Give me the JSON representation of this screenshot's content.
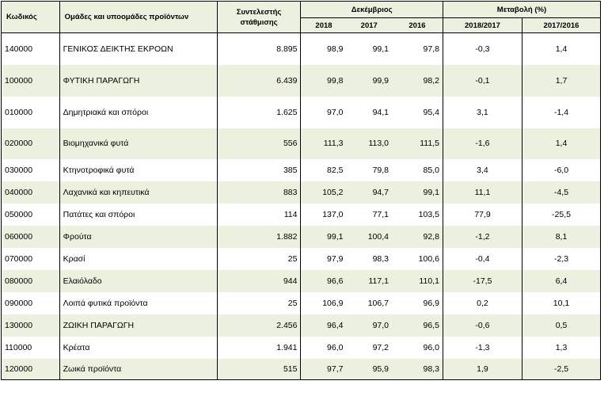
{
  "header": {
    "code": "Κωδικός",
    "groups": "Ομάδες και υποομάδες προϊόντων",
    "weight": "Συντελεστής στάθμισης",
    "december": "Δεκέμβριος",
    "change": "Μεταβολή (%)",
    "y2018": "2018",
    "y2017": "2017",
    "y2016": "2016",
    "c1": "2018/2017",
    "c2": "2017/2016"
  },
  "rows": [
    {
      "code": "140000",
      "name": "ΓΕΝΙΚΟΣ ΔΕΙΚΤΗΣ ΕΚΡΟΩΝ",
      "weight": "8.895",
      "v2018": "98,9",
      "v2017": "99,1",
      "v2016": "97,8",
      "c1": "-0,3",
      "c2": "1,4"
    },
    {
      "code": "100000",
      "name": "ΦΥΤΙΚΗ ΠΑΡΑΓΩΓΗ",
      "weight": "6.439",
      "v2018": "99,8",
      "v2017": "99,9",
      "v2016": "98,2",
      "c1": "-0,1",
      "c2": "1,7"
    },
    {
      "code": "010000",
      "name": "Δημητριακά και σπόροι",
      "weight": "1.625",
      "v2018": "97,0",
      "v2017": "94,1",
      "v2016": "95,4",
      "c1": "3,1",
      "c2": "-1,4"
    },
    {
      "code": "020000",
      "name": "Βιομηχανικά φυτά",
      "weight": "556",
      "v2018": "111,3",
      "v2017": "113,0",
      "v2016": "111,5",
      "c1": "-1,6",
      "c2": "1,4"
    },
    {
      "code": "030000",
      "name": "Κτηνοτροφικά φυτά",
      "weight": "385",
      "v2018": "82,5",
      "v2017": "79,8",
      "v2016": "85,0",
      "c1": "3,4",
      "c2": "-6,0"
    },
    {
      "code": "040000",
      "name": "Λαχανικά και κηπευτικά",
      "weight": "883",
      "v2018": "105,2",
      "v2017": "94,7",
      "v2016": "99,1",
      "c1": "11,1",
      "c2": "-4,5"
    },
    {
      "code": "050000",
      "name": "Πατάτες και σπόροι",
      "weight": "114",
      "v2018": "137,0",
      "v2017": "77,1",
      "v2016": "103,5",
      "c1": "77,9",
      "c2": "-25,5"
    },
    {
      "code": "060000",
      "name": "Φρούτα",
      "weight": "1.882",
      "v2018": "99,1",
      "v2017": "100,4",
      "v2016": "92,8",
      "c1": "-1,2",
      "c2": "8,1"
    },
    {
      "code": "070000",
      "name": "Κρασί",
      "weight": "25",
      "v2018": "97,9",
      "v2017": "98,3",
      "v2016": "100,6",
      "c1": "-0,4",
      "c2": "-2,3"
    },
    {
      "code": "080000",
      "name": "Ελαιόλαδο",
      "weight": "944",
      "v2018": "96,6",
      "v2017": "117,1",
      "v2016": "110,1",
      "c1": "-17,5",
      "c2": "6,4"
    },
    {
      "code": "090000",
      "name": "Λοιπά φυτικά προϊόντα",
      "weight": "25",
      "v2018": "106,9",
      "v2017": "106,7",
      "v2016": "96,9",
      "c1": "0,2",
      "c2": "10,1"
    },
    {
      "code": "130000",
      "name": "ΖΩΙΚΗ ΠΑΡΑΓΩΓΗ",
      "weight": "2.456",
      "v2018": "96,4",
      "v2017": "97,0",
      "v2016": "96,5",
      "c1": "-0,6",
      "c2": "0,5"
    },
    {
      "code": "110000",
      "name": "Κρέατα",
      "weight": "1.941",
      "v2018": "96,0",
      "v2017": "97,2",
      "v2016": "96,0",
      "c1": "-1,3",
      "c2": "1,3"
    },
    {
      "code": "120000",
      "name": "Ζωικά προϊόντα",
      "weight": "515",
      "v2018": "97,7",
      "v2017": "95,9",
      "v2016": "98,3",
      "c1": "1,9",
      "c2": "-2,5"
    }
  ],
  "colors": {
    "shade": "#ebf1de",
    "border": "#000000"
  }
}
